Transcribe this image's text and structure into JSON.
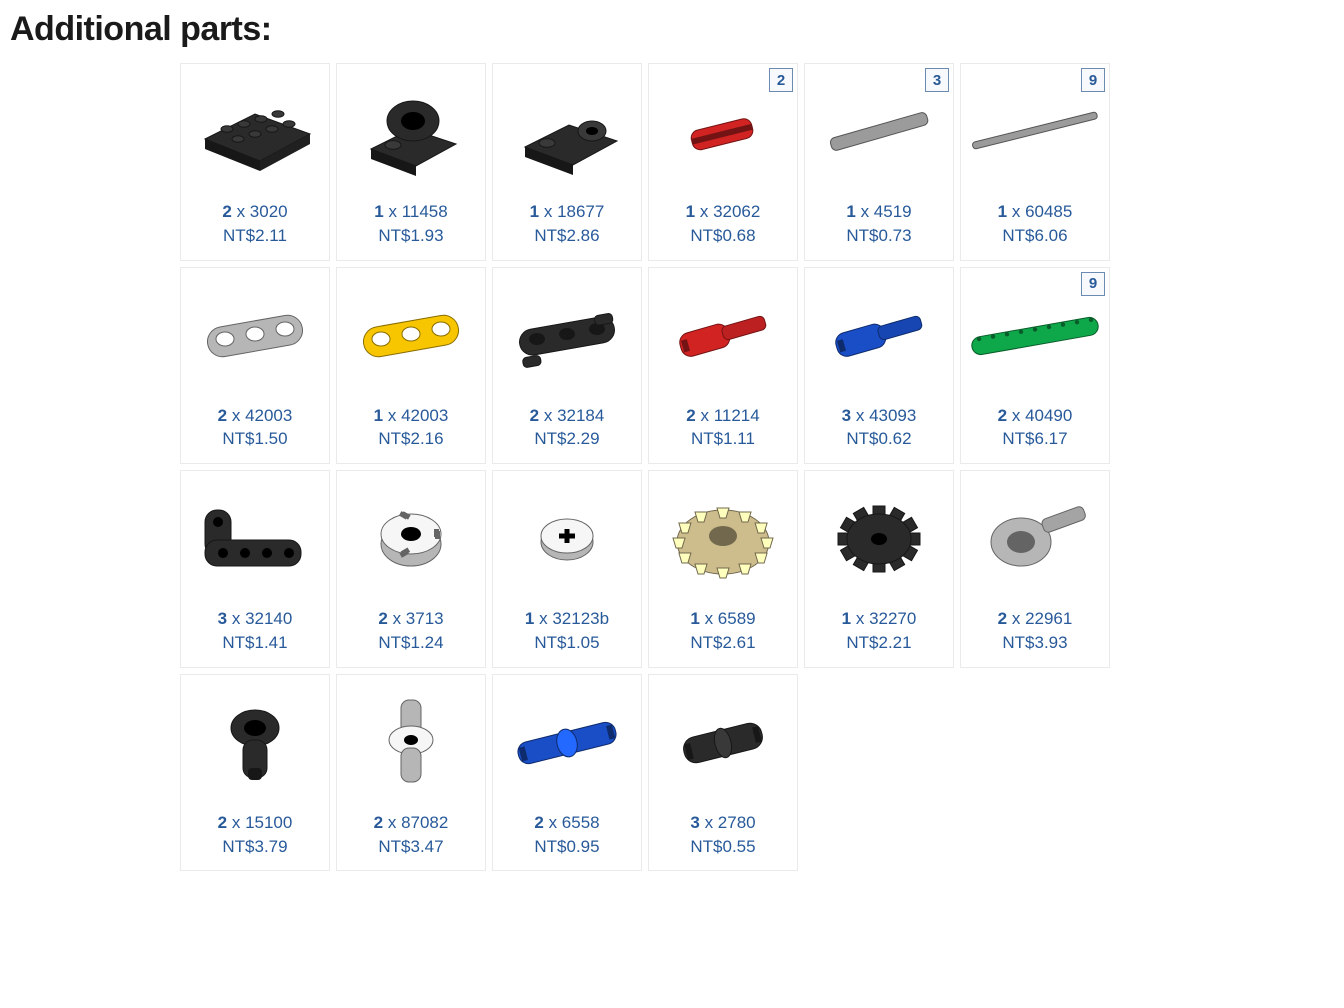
{
  "title": "Additional parts:",
  "text_color": "#285a9a",
  "border_color": "#eaeaea",
  "parts": [
    {
      "qty": "2",
      "code": "3020",
      "price": "NT$2.11",
      "shape": "plate",
      "color": "#2a2a2a",
      "corner": null
    },
    {
      "qty": "1",
      "code": "11458",
      "price": "NT$1.93",
      "shape": "hinge",
      "color": "#2a2a2a",
      "corner": null
    },
    {
      "qty": "1",
      "code": "18677",
      "price": "NT$2.86",
      "shape": "pinplate",
      "color": "#2a2a2a",
      "corner": null
    },
    {
      "qty": "1",
      "code": "32062",
      "price": "NT$0.68",
      "shape": "axle-short",
      "color": "#d22323",
      "corner": "2"
    },
    {
      "qty": "1",
      "code": "4519",
      "price": "NT$0.73",
      "shape": "axle-mid",
      "color": "#9b9b9b",
      "corner": "3"
    },
    {
      "qty": "1",
      "code": "60485",
      "price": "NT$6.06",
      "shape": "axle-long",
      "color": "#9b9b9b",
      "corner": "9"
    },
    {
      "qty": "2",
      "code": "42003",
      "price": "NT$1.50",
      "shape": "conn3",
      "color": "#b6b6b6",
      "corner": null
    },
    {
      "qty": "1",
      "code": "42003",
      "price": "NT$2.16",
      "shape": "conn3",
      "color": "#f7c600",
      "corner": null
    },
    {
      "qty": "2",
      "code": "32184",
      "price": "NT$2.29",
      "shape": "conn3b",
      "color": "#2a2a2a",
      "corner": null
    },
    {
      "qty": "2",
      "code": "11214",
      "price": "NT$1.11",
      "shape": "pin-axle",
      "color": "#d22323",
      "corner": null
    },
    {
      "qty": "3",
      "code": "43093",
      "price": "NT$0.62",
      "shape": "pin-axle",
      "color": "#1a4ec7",
      "corner": null
    },
    {
      "qty": "2",
      "code": "40490",
      "price": "NT$6.17",
      "shape": "liftarm9",
      "color": "#0ea84a",
      "corner": "9"
    },
    {
      "qty": "3",
      "code": "32140",
      "price": "NT$1.41",
      "shape": "liftarmL",
      "color": "#2a2a2a",
      "corner": null
    },
    {
      "qty": "2",
      "code": "3713",
      "price": "NT$1.24",
      "shape": "bush",
      "color": "#b6b6b6",
      "corner": null
    },
    {
      "qty": "1",
      "code": "32123b",
      "price": "NT$1.05",
      "shape": "halfbush",
      "color": "#b6b6b6",
      "corner": null
    },
    {
      "qty": "1",
      "code": "6589",
      "price": "NT$2.61",
      "shape": "bevel",
      "color": "#cdbd8c",
      "corner": null
    },
    {
      "qty": "1",
      "code": "32270",
      "price": "NT$2.21",
      "shape": "gear",
      "color": "#2a2a2a",
      "corner": null
    },
    {
      "qty": "2",
      "code": "22961",
      "price": "NT$3.93",
      "shape": "hub-axle",
      "color": "#b6b6b6",
      "corner": null
    },
    {
      "qty": "2",
      "code": "15100",
      "price": "NT$3.79",
      "shape": "pinhole",
      "color": "#2a2a2a",
      "corner": null
    },
    {
      "qty": "2",
      "code": "87082",
      "price": "NT$3.47",
      "shape": "pin-double",
      "color": "#b6b6b6",
      "corner": null
    },
    {
      "qty": "2",
      "code": "6558",
      "price": "NT$0.95",
      "shape": "pin-long",
      "color": "#1a4ec7",
      "corner": null
    },
    {
      "qty": "3",
      "code": "2780",
      "price": "NT$0.55",
      "shape": "pin-std",
      "color": "#2a2a2a",
      "corner": null
    }
  ]
}
